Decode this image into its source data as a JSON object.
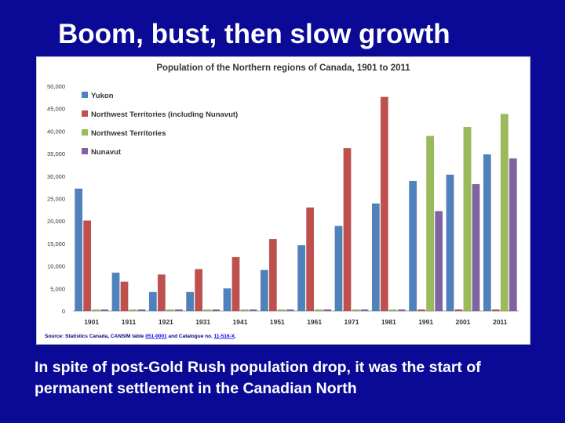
{
  "slide": {
    "title": "Boom, bust, then slow growth",
    "caption": "In spite of post-Gold Rush population drop, it was the start of permanent settlement in the Canadian North"
  },
  "chart_data": {
    "type": "bar",
    "title": "Population of the Northern regions of Canada, 1901 to 2011",
    "source_prefix": "Source: Statistics Canada, CANSIM table ",
    "source_link_1": "051-0001",
    "source_middle": " and Catalogue no. ",
    "source_link_2": "11-516-X",
    "source_suffix": ".",
    "categories": [
      "1901",
      "1911",
      "1921",
      "1931",
      "1941",
      "1951",
      "1961",
      "1971",
      "1981",
      "1991",
      "2001",
      "2011"
    ],
    "series": [
      {
        "name": "Yukon",
        "color": "#4f81bd",
        "values": [
          27200,
          8500,
          4200,
          4200,
          5000,
          9100,
          14600,
          18900,
          23900,
          28900,
          30300,
          34800
        ]
      },
      {
        "name": "Northwest Territories (including Nunavut)",
        "color": "#c0504d",
        "values": [
          20100,
          6500,
          8100,
          9300,
          12000,
          16000,
          23000,
          36200,
          47600,
          0,
          0,
          0
        ]
      },
      {
        "name": "Northwest Territories",
        "color": "#9bbb59",
        "values": [
          0,
          0,
          0,
          0,
          0,
          0,
          0,
          0,
          0,
          38900,
          40900,
          43800
        ]
      },
      {
        "name": "Nunavut",
        "color": "#8064a2",
        "values": [
          0,
          0,
          0,
          0,
          0,
          0,
          0,
          0,
          0,
          22200,
          28200,
          33900
        ]
      }
    ],
    "yticks": [
      "0",
      "5,000",
      "10,000",
      "15,000",
      "20,000",
      "25,000",
      "30,000",
      "35,000",
      "40,000",
      "45,000",
      "50,000"
    ],
    "ylim": [
      0,
      50000
    ],
    "legend_position": "top-left",
    "grid": false
  }
}
